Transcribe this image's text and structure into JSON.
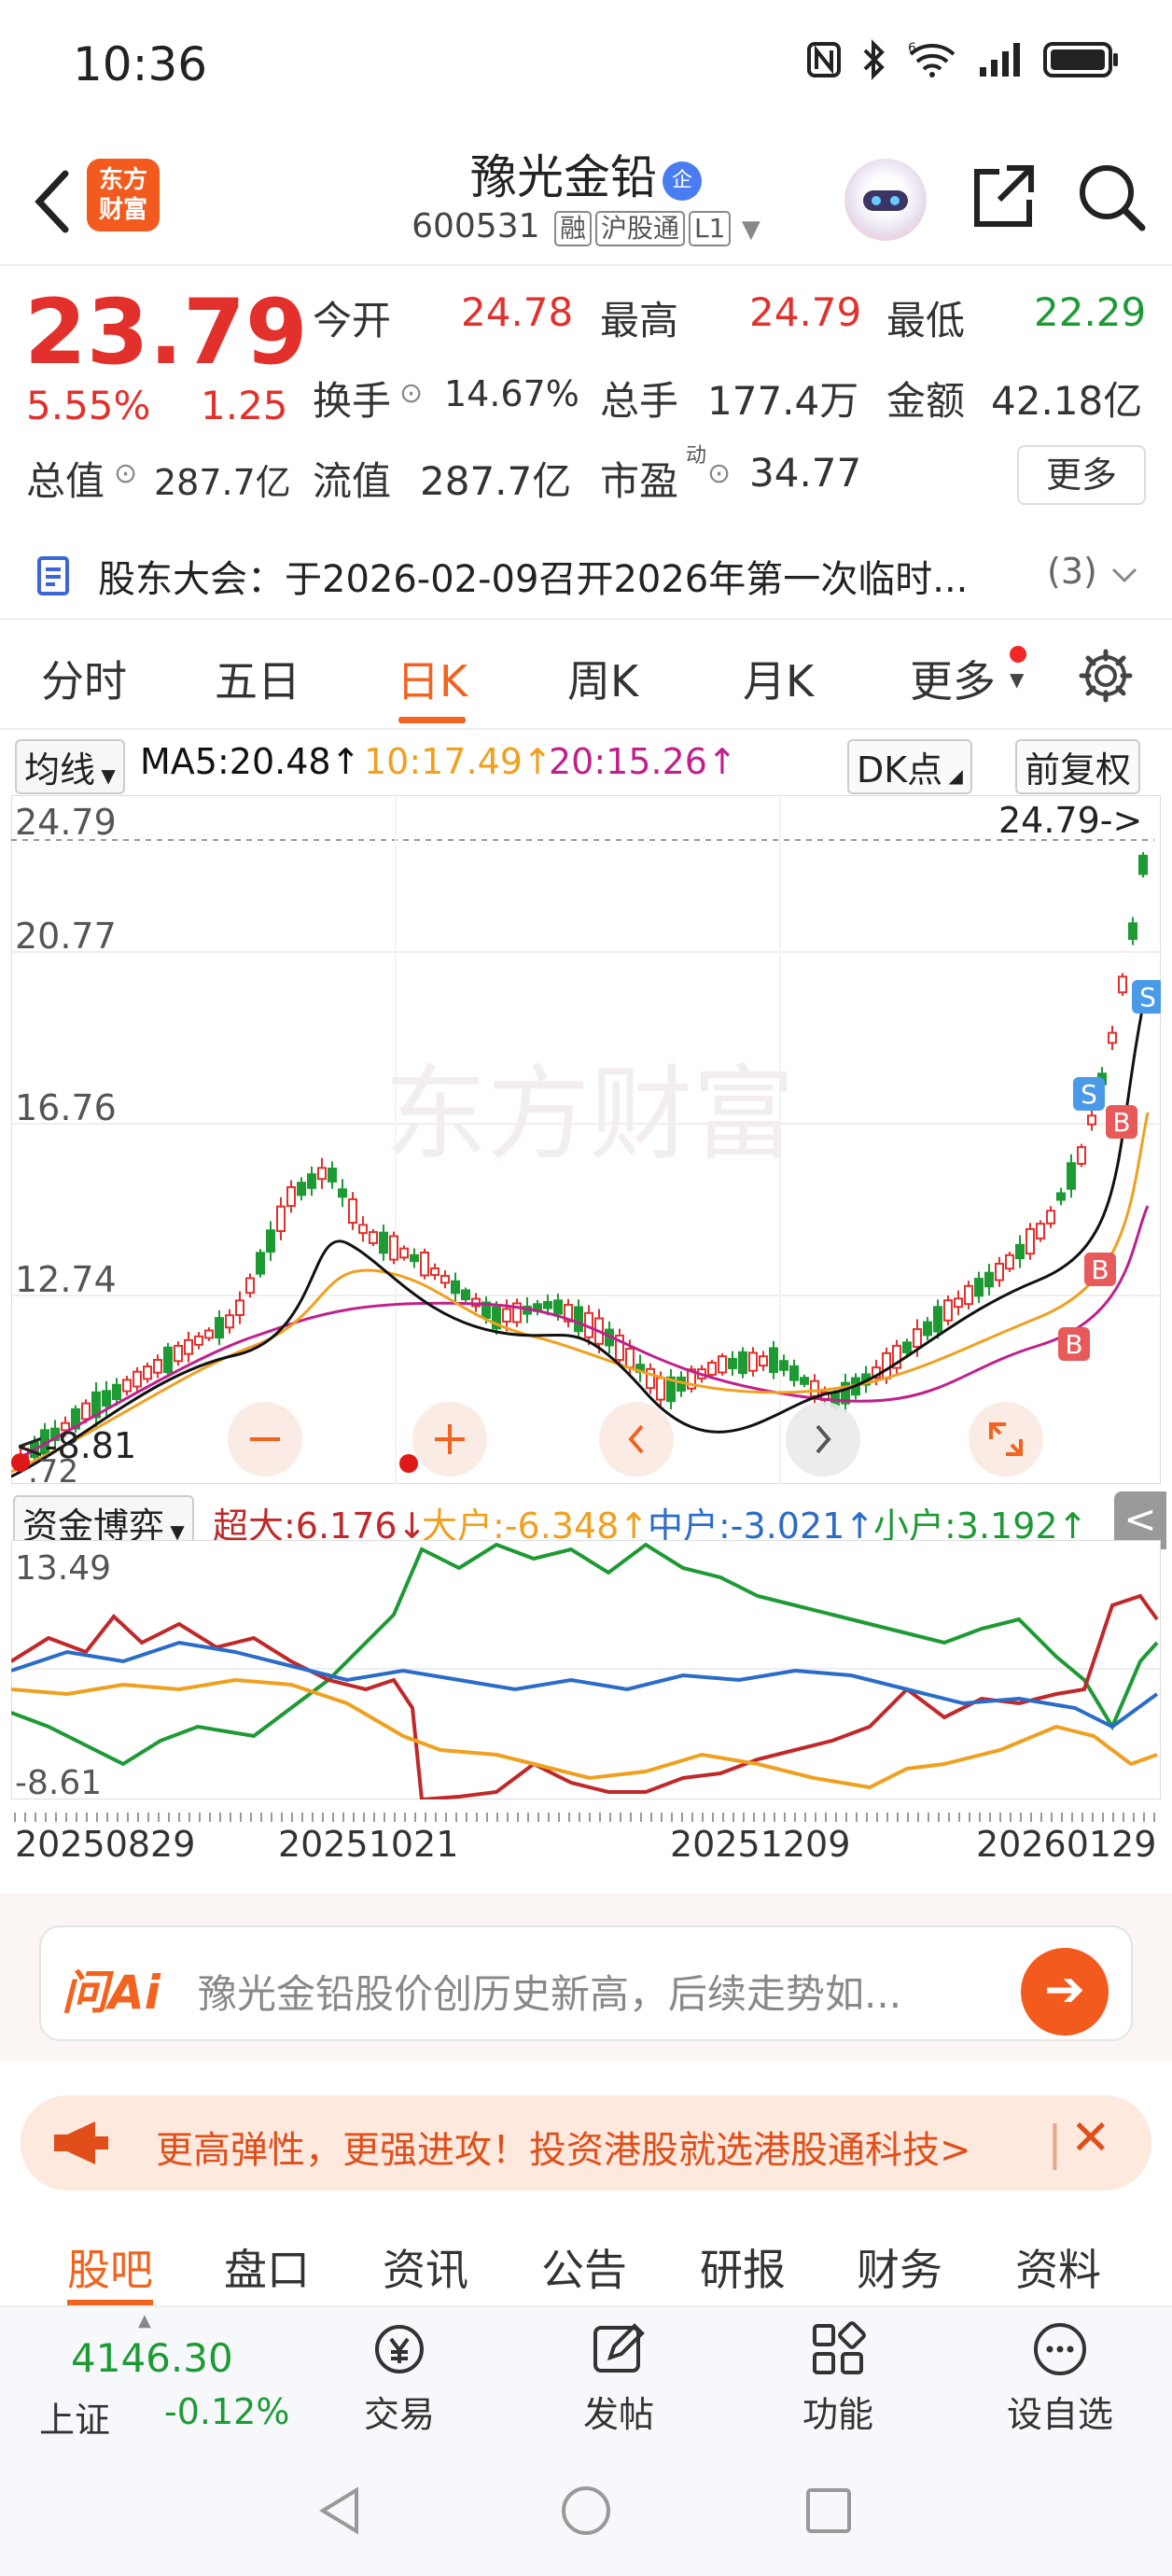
{
  "status_bar": {
    "time": "10:36",
    "signal_label": "6"
  },
  "header": {
    "logo_line1": "东方",
    "logo_line2": "财富",
    "stock_name": "豫光金铅",
    "stock_badge": "企",
    "stock_code": "600531",
    "tags": [
      "融",
      "沪股通",
      "L1"
    ]
  },
  "quote": {
    "price": "23.79",
    "change_pct": "5.55%",
    "change": "1.25",
    "open_label": "今开",
    "open": "24.78",
    "high_label": "最高",
    "high": "24.79",
    "low_label": "最低",
    "low": "22.29",
    "turnover_label": "换手",
    "turnover": "14.67%",
    "volume_label": "总手",
    "volume": "177.4万",
    "amount_label": "金额",
    "amount": "42.18亿",
    "mktcap_label": "总值",
    "mktcap": "287.7亿",
    "float_label": "流值",
    "float": "287.7亿",
    "pe_label": "市盈",
    "pe_sup": "动",
    "pe": "34.77",
    "more_label": "更多"
  },
  "notice": {
    "text": "股东大会：于2026-02-09召开2026年第一次临时...",
    "count": "(3)"
  },
  "tabs": [
    "分时",
    "五日",
    "日K",
    "周K",
    "月K",
    "更多"
  ],
  "ma_row": {
    "selector": "均线",
    "ma5": "MA5:20.48↑",
    "ma10": "10:17.49↑",
    "ma20": "20:15.26↑",
    "dk": "DK点",
    "adjust": "前复权"
  },
  "kchart": {
    "watermark": "东方财富",
    "y_labels": [
      "24.79",
      "20.77",
      "16.76",
      "12.74"
    ],
    "bottom_label_partial": ".72",
    "high_marker": "24.79->",
    "low_marker": "<-8.81",
    "signals": {
      "buy": "B",
      "sell": "S"
    }
  },
  "fund_row": {
    "selector": "资金博弈",
    "super": "超大:6.176↓",
    "big": "大户:-6.348↑",
    "mid": "中户:-3.021↑",
    "small": "小户:3.192↑",
    "collapse": "<"
  },
  "fund_chart": {
    "y_max": "13.49",
    "y_min": "-8.61"
  },
  "dates": [
    "20250829",
    "20251021",
    "20251209",
    "20260129"
  ],
  "ai": {
    "logo": "问Ai",
    "text": "豫光金铅股价创历史新高，后续走势如..."
  },
  "ad": {
    "text": "更高弹性，更强进攻！投资港股就选港股通科技>"
  },
  "sub_tabs": [
    "股吧",
    "盘口",
    "资讯",
    "公告",
    "研报",
    "财务",
    "资料"
  ],
  "bottom_bar": {
    "index_value": "4146.30",
    "index_name": "上证",
    "index_change": "-0.12%",
    "items": [
      "交易",
      "发帖",
      "功能",
      "设自选"
    ]
  },
  "colors": {
    "accent": "#f1631f",
    "up": "#e2312d",
    "down": "#1e9a35",
    "ma5": "#111111",
    "ma10": "#f0a020",
    "ma20": "#c0208c"
  }
}
